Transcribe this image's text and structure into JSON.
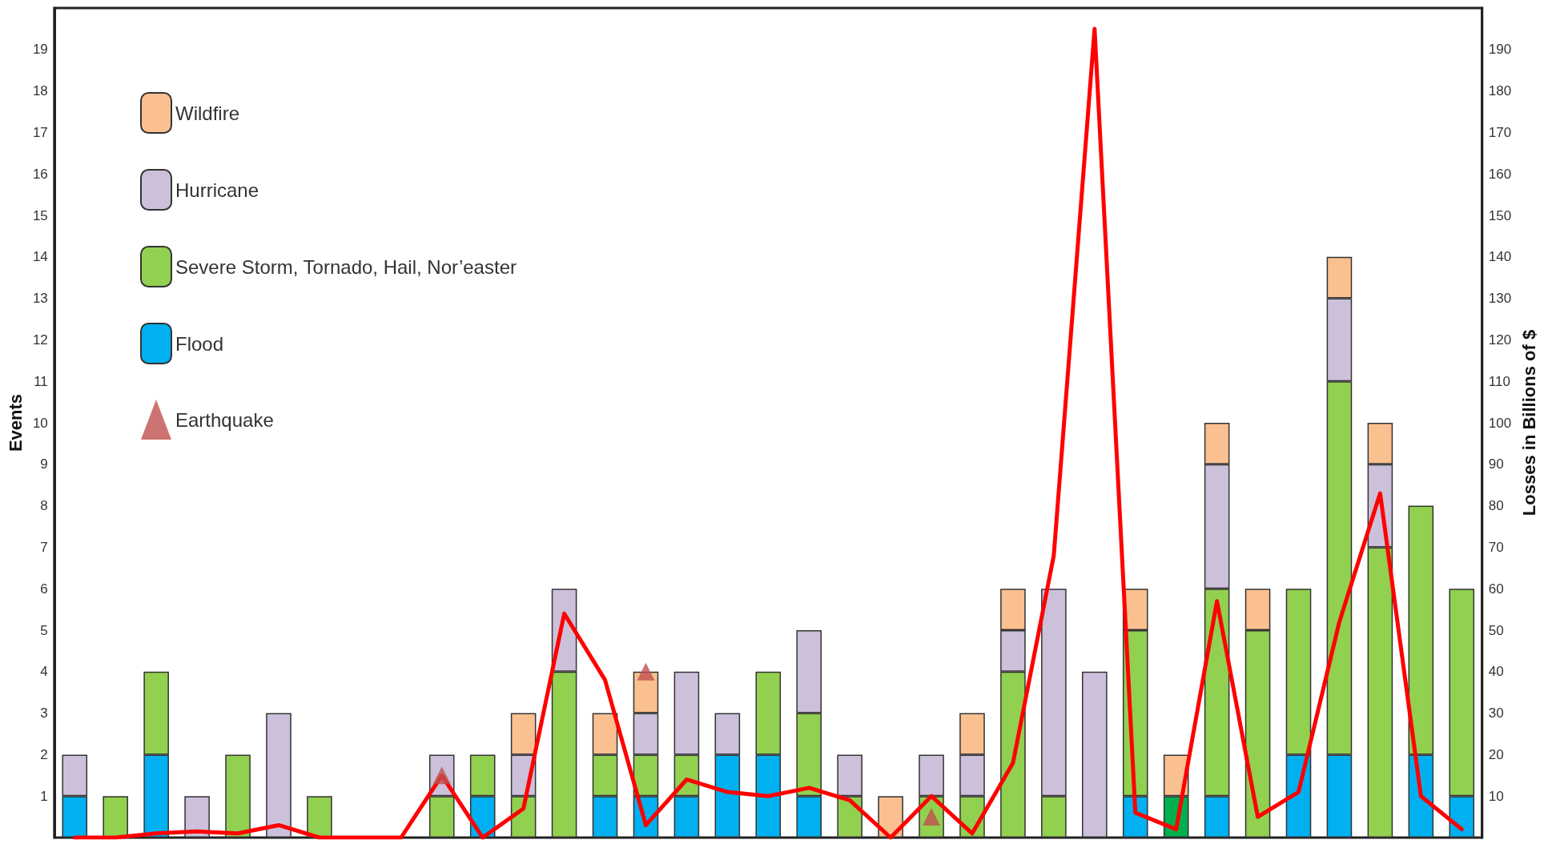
{
  "chart_data": {
    "type": "bar",
    "stacked": true,
    "ylabel": "Events",
    "y2label": "Losses in Billions of $",
    "categories": [
      null,
      null,
      null,
      null,
      null,
      null,
      null,
      null,
      null,
      null,
      null,
      null,
      null,
      null,
      null,
      null,
      null,
      null,
      null,
      null,
      null,
      null,
      null,
      null,
      null,
      null,
      null,
      null,
      null,
      null,
      null,
      null,
      null,
      null,
      null
    ],
    "ylim": [
      0,
      20
    ],
    "yticks": [
      1,
      2,
      3,
      4,
      5,
      6,
      7,
      8,
      9,
      10,
      11,
      12,
      13,
      14,
      15,
      16,
      17,
      18,
      19
    ],
    "y2lim": [
      0,
      200
    ],
    "y2ticks": [
      10,
      20,
      30,
      40,
      50,
      60,
      70,
      80,
      90,
      100,
      110,
      120,
      130,
      140,
      150,
      160,
      170,
      180,
      190
    ],
    "grid": false,
    "legend": "top left",
    "series": [
      {
        "name": "Flood",
        "color": "#00b0f0",
        "values": [
          1,
          null,
          2,
          null,
          null,
          null,
          null,
          null,
          null,
          null,
          1,
          null,
          null,
          1,
          1,
          1,
          2,
          2,
          1,
          null,
          null,
          null,
          null,
          null,
          null,
          null,
          1,
          null,
          1,
          null,
          2,
          2,
          null,
          2,
          1
        ]
      },
      {
        "name": "Severe Storm, Tornado, Hail, Nor’easter",
        "color": "#92d050",
        "colors": [
          "#92d050",
          "#92d050",
          "#92d050",
          "#92d050",
          "#92d050",
          "#92d050",
          "#92d050",
          "#92d050",
          "#92d050",
          "#92d050",
          "#92d050",
          "#92d050",
          "#92d050",
          "#92d050",
          "#92d050",
          "#92d050",
          "#92d050",
          "#92d050",
          "#92d050",
          "#92d050",
          "#92d050",
          "#92d050",
          "#92d050",
          "#92d050",
          "#92d050",
          "#92d050",
          "#92d050",
          "#00b050",
          "#92d050",
          "#92d050",
          "#92d050",
          "#92d050",
          "#92d050",
          "#92d050",
          "#92d050"
        ],
        "values": [
          null,
          1,
          2,
          null,
          2,
          null,
          1,
          null,
          null,
          1,
          1,
          1,
          4,
          1,
          1,
          1,
          null,
          2,
          2,
          1,
          null,
          1,
          1,
          4,
          1,
          null,
          4,
          1,
          5,
          5,
          4,
          9,
          7,
          6,
          5
        ]
      },
      {
        "name": "Hurricane",
        "color": "#ccc0da",
        "values": [
          1,
          null,
          null,
          1,
          null,
          3,
          null,
          null,
          null,
          1,
          null,
          1,
          2,
          null,
          1,
          2,
          1,
          null,
          2,
          1,
          null,
          1,
          1,
          1,
          5,
          4,
          null,
          null,
          3,
          null,
          null,
          2,
          2,
          null,
          null
        ]
      },
      {
        "name": "Wildfire",
        "color": "#fac090",
        "values": [
          null,
          null,
          null,
          null,
          null,
          null,
          null,
          null,
          null,
          null,
          null,
          1,
          null,
          1,
          1,
          null,
          null,
          null,
          null,
          null,
          1,
          null,
          1,
          1,
          null,
          null,
          1,
          1,
          1,
          1,
          null,
          1,
          1,
          null,
          null
        ]
      },
      {
        "name": "Earthquake",
        "type": "scatter",
        "marker": "triangle",
        "color": "#c0504d",
        "values": [
          null,
          null,
          null,
          null,
          null,
          null,
          null,
          null,
          null,
          1.5,
          null,
          null,
          null,
          null,
          4,
          null,
          null,
          null,
          null,
          null,
          null,
          0.5,
          null,
          null,
          null,
          null,
          null,
          null,
          null,
          null,
          null,
          null,
          null,
          null,
          null
        ]
      },
      {
        "type": "line",
        "axis": "y2",
        "color": "#ff0000",
        "marker": "none",
        "line_style": "solid",
        "values": [
          0,
          0,
          1,
          1.5,
          1,
          3,
          0,
          0,
          0,
          15,
          0,
          7,
          54,
          38,
          3,
          14,
          11,
          10,
          12,
          9,
          0,
          10,
          1,
          18,
          68,
          195,
          6,
          2,
          57,
          5,
          11,
          52,
          83,
          10,
          2
        ]
      }
    ]
  }
}
